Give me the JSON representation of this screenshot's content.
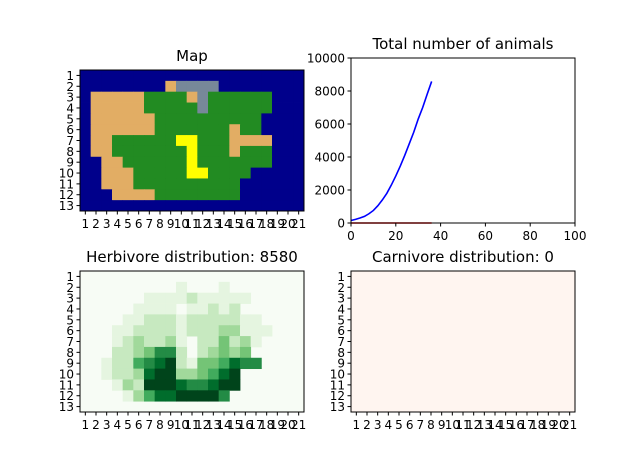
{
  "colors": {
    "ocean": "#00008b",
    "mountain": "#778899",
    "desert": "#e2ad64",
    "jungle": "#228b22",
    "yellow": "#ffff00",
    "herb_line": "#0000ff",
    "carn_line": "#ff0000",
    "carn_fill": "#fff5f0"
  },
  "map_panel": {
    "title": "Map",
    "row_labels": [
      "1",
      "2",
      "3",
      "4",
      "5",
      "6",
      "7",
      "8",
      "9",
      "10",
      "11",
      "12",
      "13"
    ],
    "col_labels": [
      "1",
      "2",
      "3",
      "4",
      "5",
      "6",
      "7",
      "8",
      "9",
      "10",
      "11",
      "12",
      "13",
      "14",
      "15",
      "16",
      "17",
      "18",
      "19",
      "20",
      "21"
    ],
    "legend": {
      "W": "ocean",
      "M": "mountain",
      "D": "desert",
      "J": "jungle",
      "Y": "yellow"
    },
    "grid": [
      "WWWWWWWWWWWWWWWWWWWWW",
      "WWWWWWWWDMMMMWWWWWWWW",
      "WDDDDDJJJJDMJJJJJJWWW",
      "WDDDDDJJJJJMJJJJJJWWW",
      "WDDDDDDJJJJJJJJJJWWWW",
      "WDDDDDDJJJJJJJDJJWWWW",
      "WDDJJJJJJYYJJJDDDDWWW",
      "WDDJJJJJJJYJJJDJJJWWW",
      "WWDDJJJJJJYJJJJJJJWWW",
      "WWDDDJJJJJYYJJJJWWWWW",
      "WWDDDJJJJJJJJJJWWWWWW",
      "WWWDDDDJJJJJJJJWWWWWW",
      "WWWWWWWWWWWWWWWWWWWWW"
    ]
  },
  "herb_panel": {
    "title": "Herbivore distribution: 8580",
    "row_labels": [
      "1",
      "2",
      "3",
      "4",
      "5",
      "6",
      "7",
      "8",
      "9",
      "10",
      "11",
      "12",
      "13"
    ],
    "col_labels": [
      "1",
      "2",
      "3",
      "4",
      "5",
      "6",
      "7",
      "8",
      "9",
      "10",
      "11",
      "12",
      "13",
      "14",
      "15",
      "16",
      "17",
      "18",
      "19",
      "20",
      "21"
    ],
    "levels": [
      "000000000000000000000",
      "000000000100010000000",
      "000000111121111100000",
      "000001111011212000000",
      "000011222122222110000",
      "000112222122233111000",
      "000123223102242310000",
      "000223466202343400000",
      "001225678214457660000",
      "001223788334578000000",
      "000132899766788000000",
      "000013577888860000000",
      "000000000000000000000"
    ]
  },
  "carn_panel": {
    "title": "Carnivore distribution: 0",
    "row_labels": [
      "1",
      "2",
      "3",
      "4",
      "5",
      "6",
      "7",
      "8",
      "9",
      "10",
      "11",
      "12",
      "13"
    ],
    "col_labels": [
      "1",
      "2",
      "3",
      "4",
      "5",
      "6",
      "7",
      "8",
      "9",
      "10",
      "11",
      "12",
      "13",
      "14",
      "15",
      "16",
      "17",
      "18",
      "19",
      "20",
      "21"
    ]
  },
  "chart_data": {
    "type": "line",
    "title": "Total number of animals",
    "xlabel": "",
    "ylabel": "",
    "xlim": [
      0,
      100
    ],
    "ylim": [
      0,
      10000
    ],
    "x_ticks": [
      "0",
      "20",
      "40",
      "60",
      "80",
      "100"
    ],
    "y_ticks": [
      "0",
      "2000",
      "4000",
      "6000",
      "8000",
      "10000"
    ],
    "series": [
      {
        "color": "#0000ff",
        "x": [
          0,
          2,
          4,
          6,
          8,
          10,
          12,
          14,
          16,
          18,
          20,
          22,
          24,
          26,
          28,
          30,
          32,
          34,
          36
        ],
        "y": [
          150,
          220,
          300,
          400,
          560,
          760,
          1050,
          1400,
          1800,
          2300,
          2850,
          3450,
          4100,
          4800,
          5500,
          6300,
          7000,
          7800,
          8580
        ]
      },
      {
        "color": "#ff0000",
        "x": [
          0,
          36
        ],
        "y": [
          0,
          0
        ]
      }
    ]
  }
}
